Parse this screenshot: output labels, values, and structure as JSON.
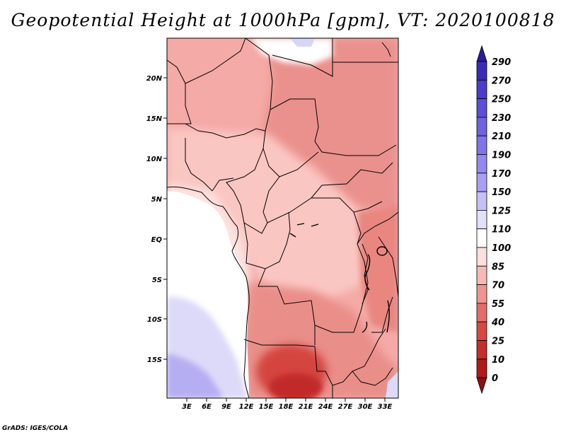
{
  "title": "Geopotential Height at 1000hPa [gpm], VT: 2020100818",
  "credit": "GrADS: IGES/COLA",
  "map": {
    "variable": "Geopotential Height",
    "level": "1000hPa",
    "units": "gpm",
    "valid_time": "2020100818",
    "lon_labels": [
      "3E",
      "6E",
      "9E",
      "12E",
      "15E",
      "18E",
      "21E",
      "24E",
      "27E",
      "30E",
      "33E"
    ],
    "lat_labels": [
      "20N",
      "15N",
      "10N",
      "5N",
      "EQ",
      "5S",
      "10S",
      "15S"
    ]
  },
  "colorbar": {
    "levels": [
      "290",
      "270",
      "250",
      "230",
      "210",
      "190",
      "170",
      "150",
      "125",
      "110",
      "100",
      "85",
      "70",
      "55",
      "40",
      "25",
      "10",
      "0"
    ],
    "colors": [
      "#2a1a9e",
      "#3a2bb8",
      "#4a3ccc",
      "#5a4fd8",
      "#6c63e0",
      "#8074ea",
      "#9489f0",
      "#a99ef4",
      "#c6c0f8",
      "#e2e0fa",
      "#ffffff",
      "#fde0de",
      "#f7b9b5",
      "#ef9590",
      "#e36d68",
      "#d84843",
      "#c72d2b",
      "#b01a1a",
      "#8f0f0f"
    ]
  }
}
